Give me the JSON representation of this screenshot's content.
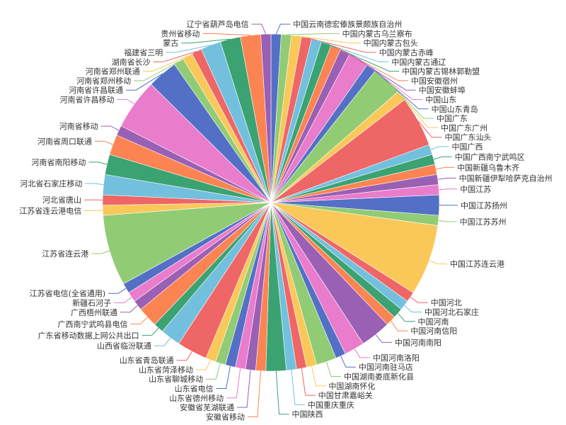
{
  "chart_data": {
    "type": "pie",
    "title": "",
    "legend": "none",
    "colors": [
      "#5470c6",
      "#91cc75",
      "#fac858",
      "#ee6666",
      "#73c0de",
      "#3ba272",
      "#fc8452",
      "#9a60b4",
      "#ea7ccc"
    ],
    "slices": [
      {
        "name": "中国云南德宏傣族景颇族自治州",
        "value": 1
      },
      {
        "name": "中国内蒙古乌兰察布",
        "value": 1
      },
      {
        "name": "中国内蒙古包头",
        "value": 1
      },
      {
        "name": "中国内蒙古赤峰",
        "value": 1
      },
      {
        "name": "中国内蒙古通辽",
        "value": 1
      },
      {
        "name": "中国内蒙古锡林郭勒盟",
        "value": 1
      },
      {
        "name": "中国安徽宿州",
        "value": 1
      },
      {
        "name": "中国安徽蚌埠",
        "value": 1
      },
      {
        "name": "中国山东",
        "value": 2
      },
      {
        "name": "中国山东青岛",
        "value": 1
      },
      {
        "name": "中国广东",
        "value": 3
      },
      {
        "name": "中国广东广州",
        "value": 1
      },
      {
        "name": "中国广东汕头",
        "value": 5
      },
      {
        "name": "中国广西",
        "value": 1
      },
      {
        "name": "中国广西南宁武鸣区",
        "value": 1
      },
      {
        "name": "中国新疆乌鲁木齐",
        "value": 1
      },
      {
        "name": "中国新疆伊犁哈萨克自治州",
        "value": 1
      },
      {
        "name": "中国江苏",
        "value": 1
      },
      {
        "name": "中国江苏扬州",
        "value": 2
      },
      {
        "name": "中国江苏苏州",
        "value": 1
      },
      {
        "name": "中国江苏连云港",
        "value": 7
      },
      {
        "name": "中国河北",
        "value": 1
      },
      {
        "name": "中国河北石家庄",
        "value": 1
      },
      {
        "name": "中国河南",
        "value": 1
      },
      {
        "name": "中国河南信阳",
        "value": 1
      },
      {
        "name": "中国河南南阳",
        "value": 3
      },
      {
        "name": "中国河南洛阳",
        "value": 2
      },
      {
        "name": "中国河南驻马店",
        "value": 1
      },
      {
        "name": "中国湖南娄底新化县",
        "value": 2
      },
      {
        "name": "中国湖南怀化",
        "value": 1
      },
      {
        "name": "中国甘肃嘉峪关",
        "value": 1
      },
      {
        "name": "中国重庆重庆",
        "value": 1
      },
      {
        "name": "中国陕西",
        "value": 2
      },
      {
        "name": "安徽省移动",
        "value": 1
      },
      {
        "name": "安徽省芜湖联通",
        "value": 1
      },
      {
        "name": "山东省德州移动",
        "value": 1
      },
      {
        "name": "山东省电信",
        "value": 1
      },
      {
        "name": "山东省聊城移动",
        "value": 1
      },
      {
        "name": "山东省菏泽移动",
        "value": 1
      },
      {
        "name": "山东省青岛联通",
        "value": 3
      },
      {
        "name": "山西省临汾联通",
        "value": 2
      },
      {
        "name": "广东省移动数据上网公共出口",
        "value": 1
      },
      {
        "name": "广西南宁武鸣县电信",
        "value": 2
      },
      {
        "name": "广西梧州联通",
        "value": 1
      },
      {
        "name": "新疆石河子",
        "value": 1
      },
      {
        "name": "江苏省电信(全省通用)",
        "value": 1
      },
      {
        "name": "江苏省连云港",
        "value": 7
      },
      {
        "name": "江苏省连云港电信",
        "value": 1
      },
      {
        "name": "河北省唐山",
        "value": 1
      },
      {
        "name": "河北省石家庄移动",
        "value": 2
      },
      {
        "name": "河南省南阳移动",
        "value": 2
      },
      {
        "name": "河南省周口联通",
        "value": 2
      },
      {
        "name": "河南省移动",
        "value": 1
      },
      {
        "name": "河南省许昌移动",
        "value": 5
      },
      {
        "name": "河南省许昌联通",
        "value": 3
      },
      {
        "name": "河南省郑州移动",
        "value": 1
      },
      {
        "name": "河南省郑州联通",
        "value": 1
      },
      {
        "name": "湖南省长沙",
        "value": 1
      },
      {
        "name": "福建省三明",
        "value": 2
      },
      {
        "name": "蒙古",
        "value": 2
      },
      {
        "name": "贵州省移动",
        "value": 2
      },
      {
        "name": "辽宁省葫芦岛电信",
        "value": 1
      }
    ]
  }
}
